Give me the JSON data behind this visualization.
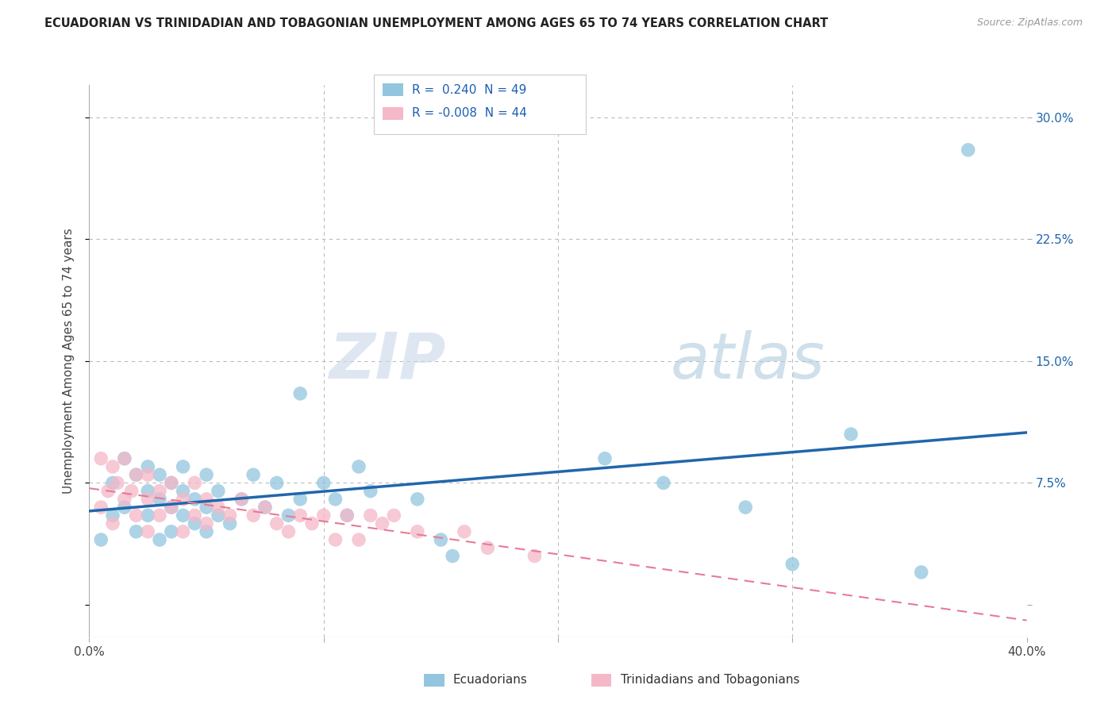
{
  "title": "ECUADORIAN VS TRINIDADIAN AND TOBAGONIAN UNEMPLOYMENT AMONG AGES 65 TO 74 YEARS CORRELATION CHART",
  "source": "Source: ZipAtlas.com",
  "ylabel": "Unemployment Among Ages 65 to 74 years",
  "xlim": [
    0.0,
    0.4
  ],
  "ylim": [
    -0.02,
    0.32
  ],
  "xticks": [
    0.0,
    0.1,
    0.2,
    0.3,
    0.4
  ],
  "xticklabels": [
    "0.0%",
    "",
    "",
    "",
    "40.0%"
  ],
  "yticks": [
    0.0,
    0.075,
    0.15,
    0.225,
    0.3
  ],
  "yticklabels": [
    "",
    "7.5%",
    "15.0%",
    "22.5%",
    "30.0%"
  ],
  "legend_r_blue": "0.240",
  "legend_n_blue": "49",
  "legend_r_pink": "-0.008",
  "legend_n_pink": "44",
  "blue_color": "#92c5de",
  "pink_color": "#f4b8c8",
  "blue_line_color": "#2166ac",
  "pink_line_color": "#e87a96",
  "grid_color": "#bbbbbb",
  "blue_scatter_x": [
    0.005,
    0.01,
    0.01,
    0.015,
    0.015,
    0.02,
    0.02,
    0.025,
    0.025,
    0.025,
    0.03,
    0.03,
    0.03,
    0.035,
    0.035,
    0.035,
    0.04,
    0.04,
    0.04,
    0.045,
    0.045,
    0.05,
    0.05,
    0.05,
    0.055,
    0.055,
    0.06,
    0.065,
    0.07,
    0.075,
    0.08,
    0.085,
    0.09,
    0.09,
    0.1,
    0.105,
    0.11,
    0.115,
    0.12,
    0.14,
    0.15,
    0.155,
    0.22,
    0.245,
    0.28,
    0.3,
    0.325,
    0.355,
    0.375
  ],
  "blue_scatter_y": [
    0.04,
    0.055,
    0.075,
    0.06,
    0.09,
    0.045,
    0.08,
    0.055,
    0.07,
    0.085,
    0.04,
    0.065,
    0.08,
    0.045,
    0.06,
    0.075,
    0.055,
    0.07,
    0.085,
    0.05,
    0.065,
    0.045,
    0.06,
    0.08,
    0.055,
    0.07,
    0.05,
    0.065,
    0.08,
    0.06,
    0.075,
    0.055,
    0.065,
    0.13,
    0.075,
    0.065,
    0.055,
    0.085,
    0.07,
    0.065,
    0.04,
    0.03,
    0.09,
    0.075,
    0.06,
    0.025,
    0.105,
    0.02,
    0.28
  ],
  "pink_scatter_x": [
    0.005,
    0.005,
    0.008,
    0.01,
    0.01,
    0.012,
    0.015,
    0.015,
    0.018,
    0.02,
    0.02,
    0.025,
    0.025,
    0.025,
    0.03,
    0.03,
    0.035,
    0.035,
    0.04,
    0.04,
    0.045,
    0.045,
    0.05,
    0.05,
    0.055,
    0.06,
    0.065,
    0.07,
    0.075,
    0.08,
    0.085,
    0.09,
    0.095,
    0.1,
    0.105,
    0.11,
    0.115,
    0.12,
    0.125,
    0.13,
    0.14,
    0.16,
    0.17,
    0.19
  ],
  "pink_scatter_y": [
    0.06,
    0.09,
    0.07,
    0.05,
    0.085,
    0.075,
    0.065,
    0.09,
    0.07,
    0.055,
    0.08,
    0.045,
    0.065,
    0.08,
    0.055,
    0.07,
    0.06,
    0.075,
    0.045,
    0.065,
    0.055,
    0.075,
    0.05,
    0.065,
    0.06,
    0.055,
    0.065,
    0.055,
    0.06,
    0.05,
    0.045,
    0.055,
    0.05,
    0.055,
    0.04,
    0.055,
    0.04,
    0.055,
    0.05,
    0.055,
    0.045,
    0.045,
    0.035,
    0.03
  ]
}
